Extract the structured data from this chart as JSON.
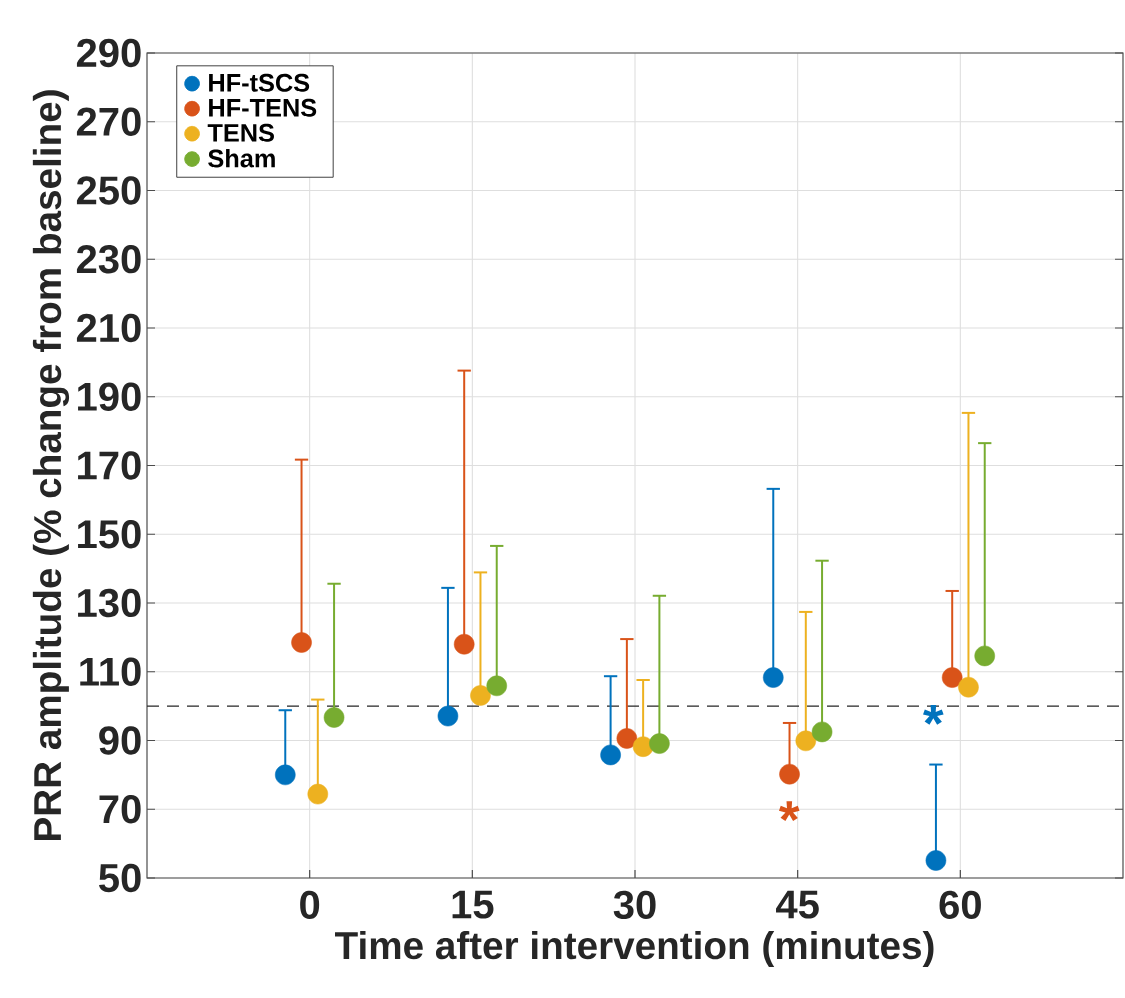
{
  "chart_data": {
    "type": "scatter",
    "xlabel": "Time after intervention (minutes)",
    "ylabel": "PRR amplitude (% change from baseline)",
    "xlim": [
      -15,
      75
    ],
    "xticks": [
      0,
      15,
      30,
      45,
      60
    ],
    "ylim": [
      50,
      290
    ],
    "yticks": [
      50,
      70,
      90,
      110,
      130,
      150,
      170,
      190,
      210,
      230,
      250,
      270,
      290
    ],
    "grid": true,
    "legend": "top left",
    "marker": "circle",
    "series": [
      {
        "name": "HF-tSCS",
        "color": "#0072bd",
        "x": [
          -2.25,
          12.75,
          27.75,
          42.75,
          57.75
        ],
        "values": [
          80.0,
          97.1,
          85.8,
          108.3,
          55.1
        ],
        "errors": [
          [
            80.0,
            98.8
          ],
          [
            97.1,
            134.4
          ],
          [
            85.8,
            108.7
          ],
          [
            108.3,
            163.2
          ],
          [
            55.1,
            83.0
          ]
        ]
      },
      {
        "name": "HF-TENS",
        "color": "#d95319",
        "x": [
          -0.75,
          14.25,
          29.25,
          44.25,
          59.25
        ],
        "values": [
          118.5,
          118.0,
          90.6,
          80.2,
          108.3
        ],
        "errors": [
          [
            118.5,
            171.7
          ],
          [
            118.0,
            197.6
          ],
          [
            90.6,
            119.5
          ],
          [
            80.2,
            95.1
          ],
          [
            108.3,
            133.5
          ]
        ]
      },
      {
        "name": "TENS",
        "color": "#edb120",
        "x": [
          0.75,
          15.75,
          30.75,
          45.75,
          60.75
        ],
        "values": [
          74.4,
          103.1,
          88.2,
          89.9,
          105.5
        ],
        "errors": [
          [
            74.4,
            101.9
          ],
          [
            103.1,
            138.9
          ],
          [
            88.2,
            107.6
          ],
          [
            89.9,
            127.4
          ],
          [
            105.5,
            185.3
          ]
        ]
      },
      {
        "name": "Sham",
        "color": "#77ac30",
        "x": [
          2.25,
          17.25,
          32.25,
          47.25,
          62.25
        ],
        "values": [
          96.7,
          105.9,
          89.1,
          92.5,
          114.6
        ],
        "errors": [
          [
            96.7,
            135.6
          ],
          [
            105.9,
            146.6
          ],
          [
            89.1,
            132.1
          ],
          [
            92.5,
            142.3
          ],
          [
            114.6,
            176.5
          ]
        ]
      }
    ],
    "ref_lines": [
      {
        "axis": "y",
        "value": 100,
        "color": "#262626",
        "line_style": "dashed"
      }
    ],
    "annotations": [
      "*",
      "*"
    ]
  }
}
